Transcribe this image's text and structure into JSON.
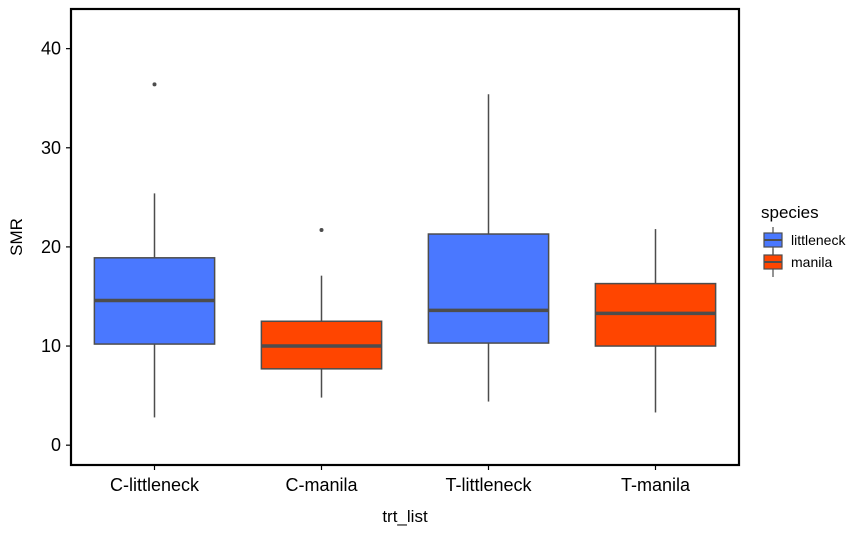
{
  "chart_data": {
    "type": "boxplot",
    "title": "",
    "xlabel": "trt_list",
    "ylabel": "SMR",
    "ylim": [
      -2,
      44
    ],
    "yticks": [
      0,
      10,
      20,
      30,
      40
    ],
    "categories": [
      "C-littleneck",
      "C-manila",
      "T-littleneck",
      "T-manila"
    ],
    "boxes": [
      {
        "category": "C-littleneck",
        "species": "littleneck",
        "whisker_low": 2.8,
        "q1": 10.2,
        "median": 14.6,
        "q3": 18.9,
        "whisker_high": 25.4,
        "outliers": [
          36.4
        ]
      },
      {
        "category": "C-manila",
        "species": "manila",
        "whisker_low": 4.8,
        "q1": 7.7,
        "median": 10.0,
        "q3": 12.5,
        "whisker_high": 17.1,
        "outliers": [
          21.7
        ]
      },
      {
        "category": "T-littleneck",
        "species": "littleneck",
        "whisker_low": 4.4,
        "q1": 10.3,
        "median": 13.6,
        "q3": 21.3,
        "whisker_high": 35.4,
        "outliers": []
      },
      {
        "category": "T-manila",
        "species": "manila",
        "whisker_low": 3.3,
        "q1": 10.0,
        "median": 13.3,
        "q3": 16.3,
        "whisker_high": 21.8,
        "outliers": []
      }
    ],
    "legend": {
      "title": "species",
      "position": "right",
      "items": [
        {
          "label": "littleneck",
          "color": "#4a78ff"
        },
        {
          "label": "manila",
          "color": "#ff4500"
        }
      ]
    },
    "grid": false
  }
}
